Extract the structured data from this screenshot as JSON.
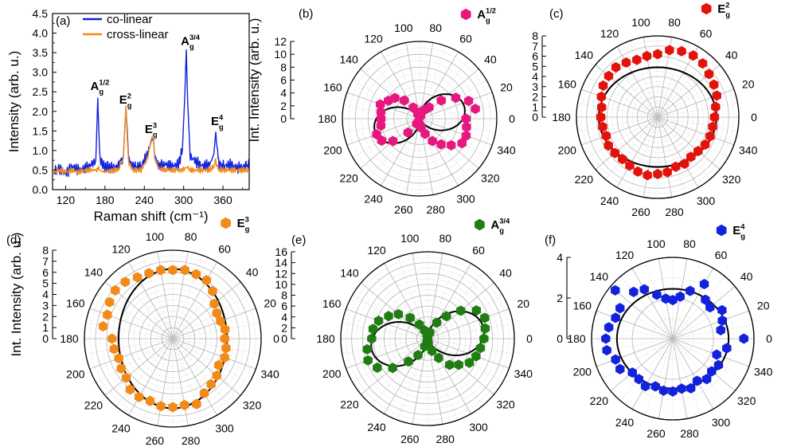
{
  "figure": {
    "colors": {
      "pink": "#e6177f",
      "red": "#e3120b",
      "orange": "#f28a1a",
      "green": "#1f7d12",
      "blue": "#1222dc",
      "fit": "#000000",
      "grid": "#b4b4b4",
      "gridMinor": "#d4d4d4"
    }
  },
  "chart_data": [
    {
      "type": "line",
      "panel": "(a)",
      "xlabel": "Raman shift (cm⁻¹)",
      "ylabel": "Intensity (arb. u.)",
      "xlim": [
        100,
        400
      ],
      "ylim": [
        0,
        4.5
      ],
      "xticks": [
        120,
        180,
        240,
        300,
        360
      ],
      "yticks": [
        0.0,
        0.5,
        1.0,
        1.5,
        2.0,
        2.5,
        3.0,
        3.5,
        4.0,
        4.5
      ],
      "grid": false,
      "legend": "top-left",
      "series": [
        {
          "name": "co-linear",
          "color": "#1222dc",
          "x": [
            102,
            110,
            120,
            130,
            140,
            150,
            160,
            166,
            169,
            172,
            178,
            190,
            200,
            208,
            212,
            214,
            216,
            222,
            235,
            245,
            250,
            252,
            254,
            256,
            262,
            272,
            282,
            292,
            298,
            302,
            304,
            306,
            310,
            320,
            330,
            340,
            346,
            349,
            351,
            354,
            362,
            372,
            382,
            392,
            400
          ],
          "y": [
            0.45,
            0.55,
            0.4,
            0.6,
            0.5,
            0.55,
            0.65,
            0.75,
            2.35,
            0.8,
            0.6,
            0.55,
            0.6,
            0.85,
            2.1,
            1.5,
            0.8,
            0.6,
            0.6,
            0.9,
            1.2,
            1.32,
            1.2,
            0.85,
            0.6,
            0.65,
            0.6,
            0.65,
            1.0,
            2.5,
            3.58,
            2.3,
            0.85,
            0.7,
            0.6,
            0.65,
            0.9,
            1.48,
            1.0,
            0.65,
            0.6,
            0.65,
            0.55,
            0.6,
            0.65
          ]
        },
        {
          "name": "cross-linear",
          "color": "#f28a1a",
          "x": [
            102,
            110,
            120,
            130,
            140,
            150,
            160,
            166,
            169,
            172,
            178,
            190,
            200,
            208,
            212,
            214,
            216,
            222,
            235,
            245,
            250,
            252,
            254,
            256,
            262,
            272,
            282,
            292,
            298,
            302,
            304,
            306,
            310,
            320,
            330,
            340,
            346,
            349,
            351,
            354,
            362,
            372,
            382,
            392,
            400
          ],
          "y": [
            0.45,
            0.5,
            0.45,
            0.5,
            0.45,
            0.5,
            0.5,
            0.5,
            0.55,
            0.5,
            0.45,
            0.5,
            0.5,
            0.8,
            2.15,
            1.3,
            0.7,
            0.5,
            0.5,
            0.8,
            1.25,
            1.35,
            1.25,
            0.8,
            0.55,
            0.5,
            0.5,
            0.5,
            0.5,
            0.55,
            0.6,
            0.55,
            0.5,
            0.5,
            0.5,
            0.5,
            0.6,
            0.75,
            0.6,
            0.5,
            0.5,
            0.5,
            0.5,
            0.5,
            0.5
          ]
        }
      ],
      "annotations": [
        {
          "base": "A",
          "sub": "g",
          "sup": "1/2",
          "x": 165,
          "y": 2.55
        },
        {
          "base": "E",
          "sub": "g",
          "sup": "2",
          "x": 209,
          "y": 2.2
        },
        {
          "base": "E",
          "sub": "g",
          "sup": "3",
          "x": 248,
          "y": 1.45
        },
        {
          "base": "A",
          "sub": "g",
          "sup": "3/4",
          "x": 303,
          "y": 3.7
        },
        {
          "base": "E",
          "sub": "g",
          "sup": "4",
          "x": 349,
          "y": 1.65
        }
      ]
    },
    {
      "type": "scatter",
      "panel": "(b)",
      "polar": true,
      "legend": {
        "base": "A",
        "sub": "g",
        "sup": "1/2"
      },
      "ylabel": "Int. Intensity (arb. u.)",
      "rmax": 12,
      "rticks": [
        0,
        2,
        4,
        6,
        8,
        10,
        12
      ],
      "angle_ticks": [
        0,
        20,
        40,
        60,
        80,
        100,
        120,
        140,
        160,
        180,
        200,
        220,
        240,
        260,
        280,
        300,
        320,
        340
      ],
      "color": "#e6177f",
      "fit": {
        "model": "cos2",
        "amplitude": 7.2,
        "offset": 0,
        "phase": 15
      },
      "points": [
        [
          0,
          7.2
        ],
        [
          10,
          8.8
        ],
        [
          20,
          8.1
        ],
        [
          30,
          6.5
        ],
        [
          40,
          4.4
        ],
        [
          50,
          2.3
        ],
        [
          60,
          1.6
        ],
        [
          70,
          0.5
        ],
        [
          80,
          0.4
        ],
        [
          90,
          1.0
        ],
        [
          100,
          0.6
        ],
        [
          110,
          0.8
        ],
        [
          120,
          2.0
        ],
        [
          130,
          3.7
        ],
        [
          140,
          5.0
        ],
        [
          150,
          5.6
        ],
        [
          160,
          6.5
        ],
        [
          170,
          6.1
        ],
        [
          180,
          6.0
        ],
        [
          190,
          6.1
        ],
        [
          200,
          7.1
        ],
        [
          210,
          6.8
        ],
        [
          220,
          5.4
        ],
        [
          230,
          2.8
        ],
        [
          240,
          0.9
        ],
        [
          250,
          0.5
        ],
        [
          260,
          0.8
        ],
        [
          270,
          0.9
        ],
        [
          280,
          1.4
        ],
        [
          290,
          2.5
        ],
        [
          300,
          4.0
        ],
        [
          310,
          5.2
        ],
        [
          320,
          6.4
        ],
        [
          330,
          7.6
        ],
        [
          340,
          7.7
        ],
        [
          350,
          7.4
        ]
      ]
    },
    {
      "type": "scatter",
      "panel": "(c)",
      "polar": true,
      "legend": {
        "base": "E",
        "sub": "g",
        "sup": "2"
      },
      "rmax": 8,
      "rticks": [
        0,
        1,
        2,
        3,
        4,
        5,
        6,
        7,
        8
      ],
      "angle_ticks": [
        0,
        20,
        40,
        60,
        80,
        100,
        120,
        140,
        160,
        180,
        200,
        220,
        240,
        260,
        280,
        300,
        320,
        340
      ],
      "color": "#e3120b",
      "fit": {
        "model": "ellipse",
        "a": 5.8,
        "b": 4.9
      },
      "points": [
        [
          0,
          5.6
        ],
        [
          10,
          5.8
        ],
        [
          20,
          6.2
        ],
        [
          30,
          6.4
        ],
        [
          40,
          6.6
        ],
        [
          50,
          6.9
        ],
        [
          60,
          7.0
        ],
        [
          70,
          6.9
        ],
        [
          80,
          6.7
        ],
        [
          90,
          6.2
        ],
        [
          100,
          6.1
        ],
        [
          110,
          6.0
        ],
        [
          120,
          6.2
        ],
        [
          130,
          6.4
        ],
        [
          140,
          6.3
        ],
        [
          150,
          6.2
        ],
        [
          160,
          5.9
        ],
        [
          170,
          5.6
        ],
        [
          180,
          5.6
        ],
        [
          190,
          5.5
        ],
        [
          200,
          5.4
        ],
        [
          210,
          5.6
        ],
        [
          220,
          5.5
        ],
        [
          230,
          5.4
        ],
        [
          240,
          5.5
        ],
        [
          250,
          5.7
        ],
        [
          260,
          5.8
        ],
        [
          270,
          5.6
        ],
        [
          280,
          5.5
        ],
        [
          290,
          5.2
        ],
        [
          300,
          5.3
        ],
        [
          310,
          5.1
        ],
        [
          320,
          5.2
        ],
        [
          330,
          5.4
        ],
        [
          340,
          5.5
        ],
        [
          350,
          5.5
        ]
      ]
    },
    {
      "type": "scatter",
      "panel": "(d)",
      "polar": true,
      "legend": {
        "base": "E",
        "sub": "g",
        "sup": "3"
      },
      "ylabel": "Int. Intensity (arb. u.)",
      "rmax": 8,
      "rticks": [
        0,
        1,
        2,
        3,
        4,
        5,
        6,
        7,
        8
      ],
      "angle_ticks": [
        0,
        20,
        40,
        60,
        80,
        100,
        120,
        140,
        160,
        180,
        200,
        220,
        240,
        260,
        280,
        300,
        320,
        340
      ],
      "color": "#f28a1a",
      "fit": {
        "model": "ellipse",
        "a": 4.9,
        "b": 6.3
      },
      "points": [
        [
          0,
          4.7
        ],
        [
          10,
          4.8
        ],
        [
          20,
          4.6
        ],
        [
          30,
          4.6
        ],
        [
          40,
          4.9
        ],
        [
          50,
          5.6
        ],
        [
          60,
          6.1
        ],
        [
          70,
          6.2
        ],
        [
          80,
          6.3
        ],
        [
          90,
          6.2
        ],
        [
          100,
          6.3
        ],
        [
          110,
          6.3
        ],
        [
          120,
          6.4
        ],
        [
          130,
          6.7
        ],
        [
          140,
          6.8
        ],
        [
          150,
          6.6
        ],
        [
          160,
          6.3
        ],
        [
          170,
          6.4
        ],
        [
          180,
          5.5
        ],
        [
          190,
          5.4
        ],
        [
          200,
          5.2
        ],
        [
          210,
          5.4
        ],
        [
          220,
          5.5
        ],
        [
          230,
          6.0
        ],
        [
          240,
          6.1
        ],
        [
          250,
          6.0
        ],
        [
          260,
          6.2
        ],
        [
          270,
          6.2
        ],
        [
          280,
          6.1
        ],
        [
          290,
          6.3
        ],
        [
          300,
          5.7
        ],
        [
          310,
          5.4
        ],
        [
          320,
          5.2
        ],
        [
          330,
          4.8
        ],
        [
          340,
          5.0
        ],
        [
          350,
          4.9
        ]
      ]
    },
    {
      "type": "scatter",
      "panel": "(e)",
      "polar": true,
      "legend": {
        "base": "A",
        "sub": "g",
        "sup": "3/4"
      },
      "rmax": 16,
      "rticks": [
        0,
        2,
        4,
        6,
        8,
        10,
        12,
        14,
        16
      ],
      "angle_ticks": [
        0,
        20,
        40,
        60,
        80,
        100,
        120,
        140,
        160,
        180,
        200,
        220,
        240,
        260,
        280,
        300,
        320,
        340
      ],
      "color": "#1f7d12",
      "fit": {
        "model": "cos2",
        "amplitude": 10.5,
        "offset": 0,
        "phase": 10
      },
      "points": [
        [
          0,
          10.4
        ],
        [
          10,
          10.8
        ],
        [
          20,
          11.2
        ],
        [
          30,
          10.4
        ],
        [
          40,
          8.0
        ],
        [
          50,
          5.4
        ],
        [
          60,
          3.4
        ],
        [
          70,
          1.2
        ],
        [
          80,
          0.3
        ],
        [
          90,
          0.6
        ],
        [
          100,
          0.8
        ],
        [
          110,
          1.6
        ],
        [
          120,
          3.0
        ],
        [
          130,
          5.0
        ],
        [
          140,
          7.0
        ],
        [
          150,
          8.3
        ],
        [
          160,
          9.6
        ],
        [
          170,
          10.2
        ],
        [
          180,
          10.3
        ],
        [
          190,
          11.3
        ],
        [
          200,
          11.7
        ],
        [
          210,
          10.7
        ],
        [
          220,
          8.4
        ],
        [
          230,
          5.5
        ],
        [
          240,
          3.5
        ],
        [
          250,
          1.5
        ],
        [
          260,
          0.6
        ],
        [
          270,
          0.3
        ],
        [
          280,
          0.8
        ],
        [
          290,
          2.4
        ],
        [
          300,
          4.1
        ],
        [
          310,
          6.3
        ],
        [
          320,
          7.5
        ],
        [
          330,
          8.9
        ],
        [
          340,
          9.5
        ],
        [
          350,
          9.9
        ]
      ]
    },
    {
      "type": "scatter",
      "panel": "(f)",
      "polar": true,
      "legend": {
        "base": "E",
        "sub": "g",
        "sup": "4"
      },
      "rmax": 4,
      "rticks": [
        0,
        2,
        4
      ],
      "angle_ticks": [
        0,
        20,
        40,
        60,
        80,
        100,
        120,
        140,
        160,
        180,
        200,
        220,
        240,
        260,
        280,
        300,
        320,
        340
      ],
      "color": "#1222dc",
      "fit": {
        "model": "ellipse",
        "a": 2.75,
        "b": 2.45
      },
      "points": [
        [
          0,
          3.5
        ],
        [
          10,
          2.4
        ],
        [
          20,
          2.6
        ],
        [
          30,
          2.8
        ],
        [
          40,
          2.4
        ],
        [
          50,
          2.5
        ],
        [
          60,
          3.1
        ],
        [
          70,
          2.5
        ],
        [
          80,
          2.1
        ],
        [
          90,
          1.9
        ],
        [
          100,
          2.0
        ],
        [
          110,
          2.3
        ],
        [
          120,
          2.8
        ],
        [
          130,
          3.0
        ],
        [
          140,
          3.7
        ],
        [
          150,
          3.0
        ],
        [
          160,
          3.0
        ],
        [
          170,
          3.2
        ],
        [
          180,
          3.3
        ],
        [
          190,
          3.3
        ],
        [
          200,
          3.0
        ],
        [
          210,
          3.0
        ],
        [
          220,
          2.6
        ],
        [
          230,
          2.6
        ],
        [
          240,
          2.7
        ],
        [
          250,
          2.5
        ],
        [
          260,
          2.6
        ],
        [
          270,
          2.6
        ],
        [
          280,
          2.5
        ],
        [
          290,
          2.6
        ],
        [
          300,
          2.4
        ],
        [
          310,
          2.6
        ],
        [
          320,
          2.5
        ],
        [
          330,
          2.6
        ],
        [
          340,
          2.3
        ],
        [
          350,
          2.7
        ]
      ]
    }
  ]
}
